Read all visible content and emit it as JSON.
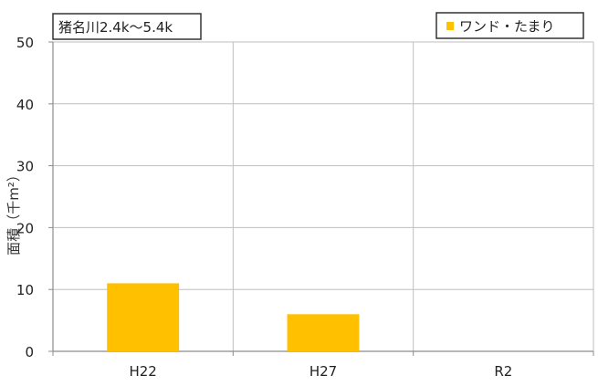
{
  "chart_data": {
    "type": "bar",
    "title": "猪名川2.4k〜5.4k",
    "ylabel": "面積（千m²）",
    "xlabel": "",
    "categories": [
      "H22",
      "H27",
      "R2"
    ],
    "series": [
      {
        "name": "ワンド・たまり",
        "values": [
          11,
          6,
          0
        ],
        "color": "#FFC000"
      }
    ],
    "ylim": [
      0,
      50
    ],
    "yticks": [
      0,
      10,
      20,
      30,
      40,
      50
    ],
    "grid": true,
    "legend_position": "top-right"
  },
  "colors": {
    "bar": "#FFC000",
    "grid": "#bfbfbf",
    "axis": "#8c8c8c"
  }
}
